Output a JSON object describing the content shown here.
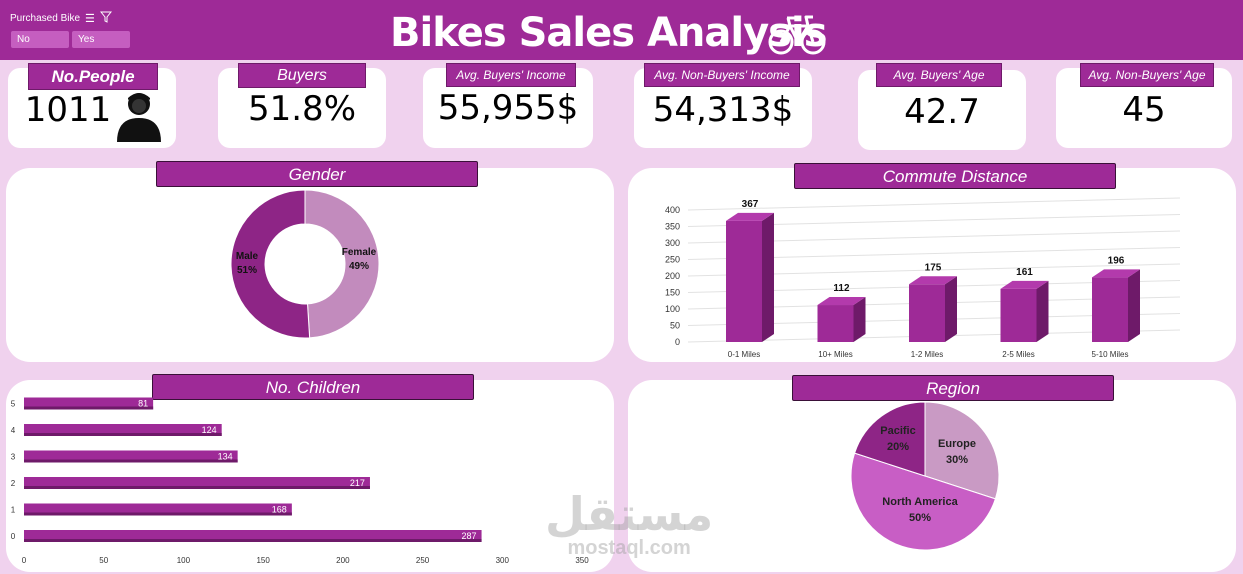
{
  "header": {
    "title": "Bikes Sales Analysis",
    "slicer": {
      "title": "Purchased Bike",
      "options": [
        "No",
        "Yes"
      ]
    }
  },
  "kpis": {
    "people": {
      "label": "No.People",
      "value": "1011"
    },
    "buyers": {
      "label": "Buyers",
      "value": "51.8%"
    },
    "buyers_income": {
      "label": "Avg. Buyers' Income",
      "value": "55,955$"
    },
    "non_buyers_income": {
      "label": "Avg. Non-Buyers' Income",
      "value": "54,313$"
    },
    "buyers_age": {
      "label": "Avg. Buyers' Age",
      "value": "42.7"
    },
    "non_buyers_age": {
      "label": "Avg. Non-Buyers' Age",
      "value": "45"
    }
  },
  "colors": {
    "accent": "#9e2a97",
    "background": "#f0d2ee",
    "bar": "#9e2a97",
    "bar_side": "#6e1a69",
    "bar_top": "#b33aac"
  },
  "watermark": {
    "line1": "مستقل",
    "line2": "mostaql.com"
  },
  "chart_data": [
    {
      "type": "pie",
      "subtype": "donut",
      "title": "Gender",
      "categories": [
        "Female",
        "Male"
      ],
      "values": [
        49,
        51
      ],
      "labels": [
        "49%",
        "51%"
      ],
      "colors": [
        "#c28bbd",
        "#8e2586"
      ]
    },
    {
      "type": "bar",
      "title": "Commute Distance",
      "categories": [
        "0-1 Miles",
        "10+ Miles",
        "1-2 Miles",
        "2-5 Miles",
        "5-10 Miles"
      ],
      "values": [
        367,
        112,
        175,
        161,
        196
      ],
      "ylim": [
        0,
        400
      ],
      "yticks": [
        0,
        50,
        100,
        150,
        200,
        250,
        300,
        350,
        400
      ],
      "grid": true
    },
    {
      "type": "bar",
      "orientation": "horizontal",
      "title": "No. Children",
      "categories": [
        "0",
        "1",
        "2",
        "3",
        "4",
        "5"
      ],
      "values": [
        287,
        168,
        217,
        134,
        124,
        81
      ],
      "xlim": [
        0,
        350
      ],
      "xticks": [
        0,
        50,
        100,
        150,
        200,
        250,
        300,
        350
      ]
    },
    {
      "type": "pie",
      "title": "Region",
      "categories": [
        "Europe",
        "North America",
        "Pacific"
      ],
      "values": [
        30,
        50,
        20
      ],
      "labels": [
        "30%",
        "50%",
        "20%"
      ],
      "colors": [
        "#c99ac4",
        "#c85ec5",
        "#8e2586"
      ]
    }
  ]
}
